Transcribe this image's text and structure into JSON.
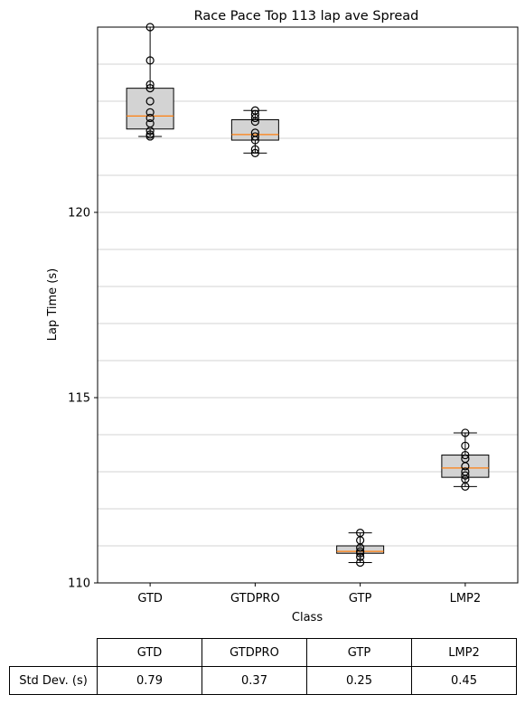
{
  "chart_data": {
    "type": "box",
    "title": "Race Pace Top 113 lap ave Spread",
    "xlabel": "Class",
    "ylabel": "Lap Time (s)",
    "ylim": [
      110,
      125
    ],
    "yticks": [
      110,
      115,
      120
    ],
    "grid": "horizontal",
    "categories": [
      "GTD",
      "GTDPRO",
      "GTP",
      "LMP2"
    ],
    "boxes": [
      {
        "name": "GTD",
        "whisker_low": 122.05,
        "q1": 122.25,
        "median": 122.6,
        "q3": 123.35,
        "whisker_high": 125.0,
        "points": [
          125.0,
          124.1,
          123.45,
          123.35,
          123.0,
          122.7,
          122.55,
          122.4,
          122.2,
          122.1,
          122.05
        ]
      },
      {
        "name": "GTDPRO",
        "whisker_low": 121.6,
        "q1": 121.95,
        "median": 122.1,
        "q3": 122.5,
        "whisker_high": 122.75,
        "points": [
          122.75,
          122.65,
          122.55,
          122.45,
          122.15,
          122.05,
          121.95,
          121.7,
          121.6
        ]
      },
      {
        "name": "GTP",
        "whisker_low": 110.55,
        "q1": 110.8,
        "median": 110.85,
        "q3": 111.0,
        "whisker_high": 111.35,
        "points": [
          111.35,
          111.15,
          110.95,
          110.85,
          110.8,
          110.7,
          110.55
        ]
      },
      {
        "name": "LMP2",
        "whisker_low": 112.6,
        "q1": 112.85,
        "median": 113.1,
        "q3": 113.45,
        "whisker_high": 114.05,
        "points": [
          114.05,
          113.7,
          113.45,
          113.35,
          113.15,
          113.0,
          112.9,
          112.8,
          112.6
        ]
      }
    ],
    "colors": {
      "box_fill": "#d3d3d3",
      "median": "#ff7f0e",
      "grid": "#d3d3d3",
      "edge": "#000000"
    }
  },
  "table": {
    "headers": [
      "GTD",
      "GTDPRO",
      "GTP",
      "LMP2"
    ],
    "row_label": "Std Dev. (s)",
    "values": [
      "0.79",
      "0.37",
      "0.25",
      "0.45"
    ]
  }
}
